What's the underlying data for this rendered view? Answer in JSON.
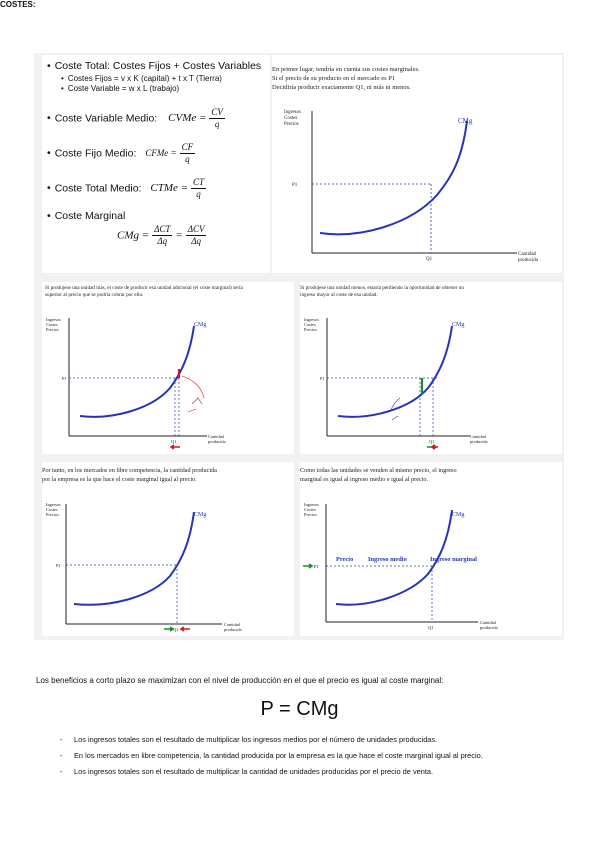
{
  "heading": "COSTES:",
  "bullets": {
    "coste_total": "Coste Total: Costes Fijos + Costes Variables",
    "costes_fijos": "Costes Fijos = v x K (capital) + t x T (Tierra)",
    "coste_variable": "Coste Variable = w x L (trabajo)",
    "cvme_label": "Coste Variable Medio:",
    "cvme_lhs": "CVMe =",
    "cvme_num": "CV",
    "cvme_den": "q",
    "cfme_label": "Coste Fijo Medio:",
    "cfme_lhs": "CFMe =",
    "cfme_num": "CF",
    "cfme_den": "q",
    "ctme_label": "Coste Total Medio:",
    "ctme_lhs": "CTMe =",
    "ctme_num": "CT",
    "ctme_den": "q",
    "cmg_label": "Coste Marginal",
    "cmg_lhs": "CMg =",
    "cmg_num1": "ΔCT",
    "cmg_den1": "Δq",
    "cmg_num2": "ΔCV",
    "cmg_den2": "Δq"
  },
  "panel1_text": [
    "En primer lugar, tendría en cuenta sus costes marginales.",
    "Si el precio de su producto en el mercado es P1",
    "Decidiría producir exactamente Q1, ni más ni menos."
  ],
  "panel2_text": [
    "Si produjese una unidad más, el coste de producir esa unidad adicional (el coste marginal) sería",
    "superior al precio que se podría cobrar por ella."
  ],
  "panel3_text": [
    "Si produjese una unidad menos, estaría perdiendo la oportunidad de obtener un",
    "ingreso mayor al coste de esa unidad."
  ],
  "panel4_text": [
    "Por tanto, en los mercados en libre competencia, la cantidad producida",
    "por la empresa es la que hace el coste marginal igual al precio."
  ],
  "panel5_text": [
    "Como todas las unidades se venden al mismo precio, el ingreso",
    "marginal es igual al ingreso medio e igual al precio."
  ],
  "graph": {
    "y_axis_label": [
      "Ingresos",
      "Costes",
      "Precios"
    ],
    "x_axis_label": [
      "Cantidad",
      "producida"
    ],
    "curve_label": "CMg",
    "p_label": "P1",
    "q_label": "Q1",
    "price_line_labels": [
      "Precio",
      "Ingreso medio",
      "Ingreso marginal"
    ]
  },
  "conclusion": "Los beneficios a corto plazo se maximizan con el nivel de producción en el que el precio es igual al coste marginal:",
  "main_formula": "P = CMg",
  "list": [
    "Los ingresos totales son el resultado de multiplicar los ingresos medios por el número de unidades producidas.",
    "En los mercados en libre competencia, la cantidad producida por la empresa es la que hace el coste marginal igual al precio.",
    "Los ingresos totales son el resultado de multiplicar la cantidad de unidades producidas por el precio de venta."
  ],
  "colors": {
    "curve": "#2633b8",
    "guide": "#2b3fb0",
    "red": "#d01818",
    "green": "#1a8a2a"
  }
}
